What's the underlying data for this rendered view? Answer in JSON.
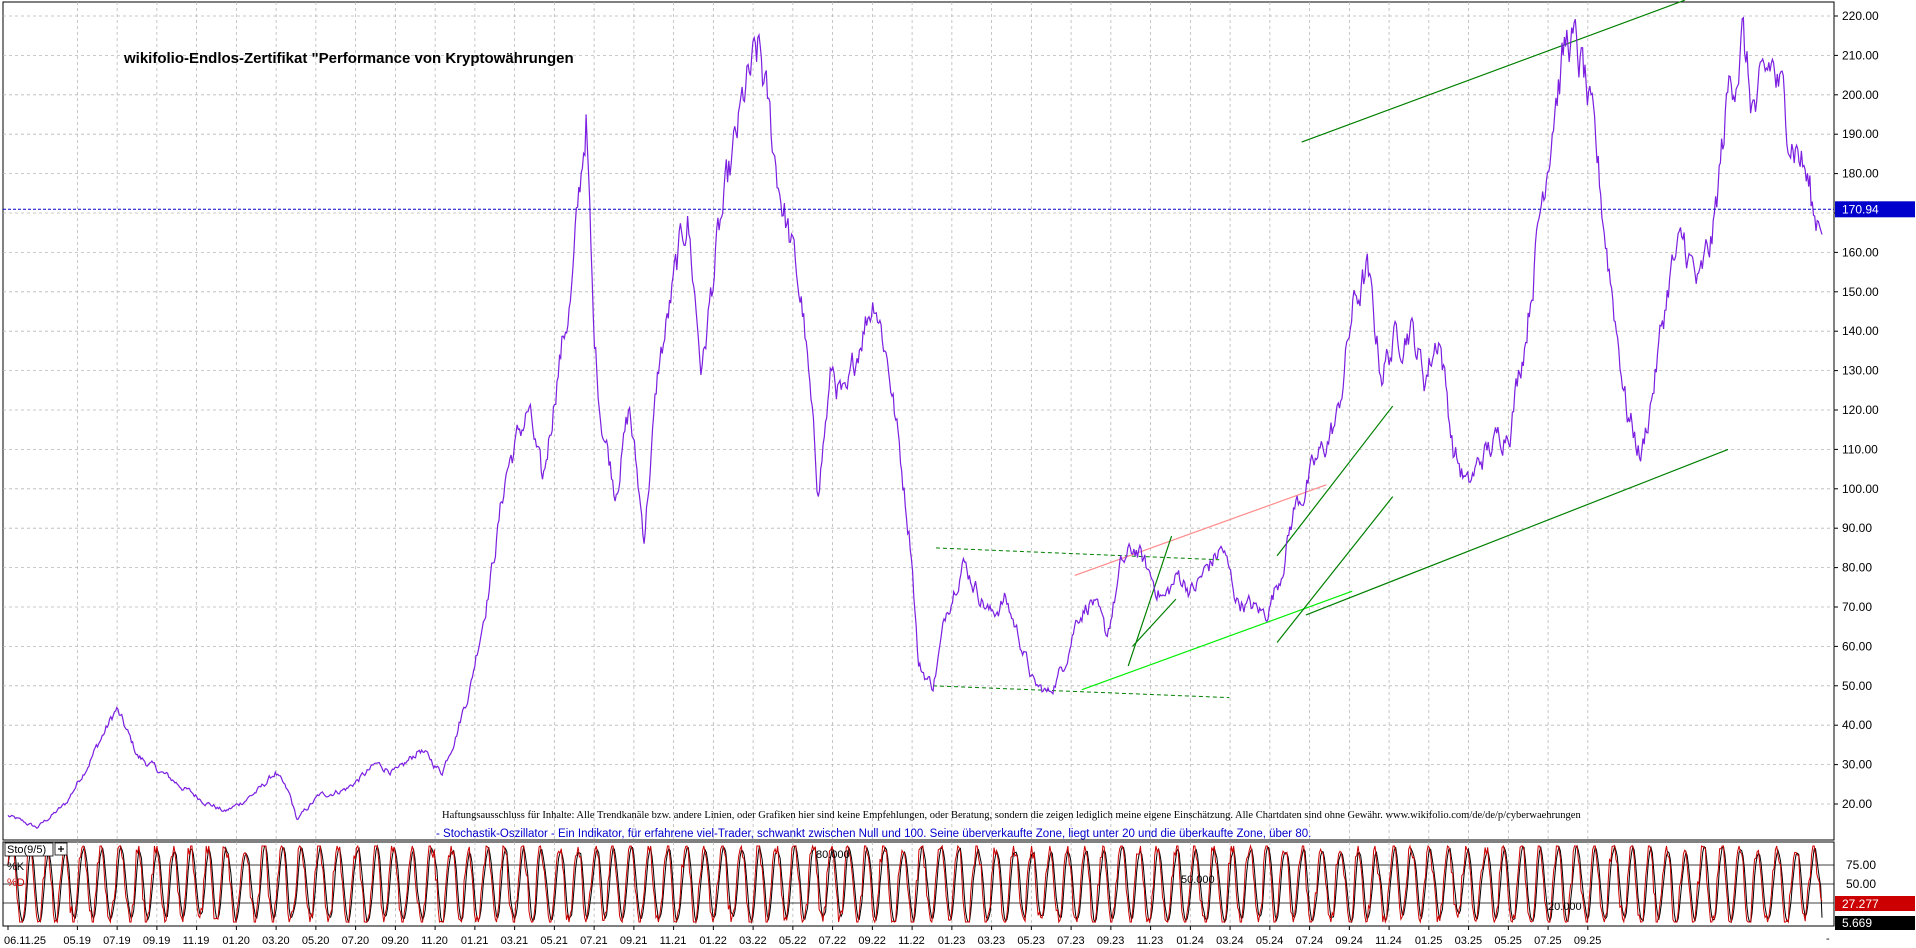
{
  "chart_data": [
    {
      "type": "line",
      "title": "wikifolio-Endlos-Zertifikat \"Performance von Kryptowährungen",
      "y_ticks": [
        "220.00",
        "210.00",
        "200.00",
        "190.00",
        "180.00",
        "170.00",
        "160.00",
        "150.00",
        "140.00",
        "130.00",
        "120.00",
        "110.00",
        "100.00",
        "90.00",
        "80.00",
        "70.00",
        "60.00",
        "50.00",
        "40.00",
        "30.00",
        "20.00"
      ],
      "ylim": [
        12,
        223
      ],
      "last_value_label": "170.94",
      "last_value": 170.94,
      "x_ticks": [
        "06.11.25",
        "05.19",
        "07.19",
        "09.19",
        "11.19",
        "01.20",
        "03.20",
        "05.20",
        "07.20",
        "09.20",
        "11.20",
        "01.21",
        "03.21",
        "05.21",
        "07.21",
        "09.21",
        "11.21",
        "01.22",
        "03.22",
        "05.22",
        "07.22",
        "09.22",
        "11.22",
        "01.23",
        "03.23",
        "05.23",
        "07.23",
        "09.23",
        "11.23",
        "01.24",
        "03.24",
        "05.24",
        "07.24",
        "09.24",
        "11.24",
        "01.25",
        "03.25",
        "05.25",
        "07.25",
        "09.25"
      ],
      "x_tick_pos": [
        0.0,
        0.048,
        0.0755,
        0.103,
        0.1305,
        0.158,
        0.1855,
        0.213,
        0.2405,
        0.268,
        0.2955,
        0.323,
        0.3505,
        0.378,
        0.4055,
        0.433,
        0.4605,
        0.488,
        0.5155,
        0.543,
        0.5705,
        0.598,
        0.6255,
        0.653,
        0.6805,
        0.708,
        0.7355,
        0.763,
        0.7905,
        0.818,
        0.8455,
        0.873,
        0.9005,
        0.928,
        0.9555,
        0.983,
        1.0105,
        1.038,
        1.0655,
        1.093
      ],
      "series": [
        {
          "color": "#7b1fe0",
          "anchors": [
            [
              0.0,
              17
            ],
            [
              0.02,
              14
            ],
            [
              0.04,
              20
            ],
            [
              0.055,
              30
            ],
            [
              0.075,
              44
            ],
            [
              0.09,
              32
            ],
            [
              0.11,
              27
            ],
            [
              0.13,
              22
            ],
            [
              0.15,
              18
            ],
            [
              0.16,
              20
            ],
            [
              0.175,
              24
            ],
            [
              0.185,
              28
            ],
            [
              0.195,
              22
            ],
            [
              0.2,
              16
            ],
            [
              0.215,
              22
            ],
            [
              0.235,
              24
            ],
            [
              0.255,
              30
            ],
            [
              0.27,
              28
            ],
            [
              0.285,
              34
            ],
            [
              0.3,
              28
            ],
            [
              0.31,
              38
            ],
            [
              0.32,
              50
            ],
            [
              0.335,
              80
            ],
            [
              0.345,
              105
            ],
            [
              0.36,
              120
            ],
            [
              0.37,
              100
            ],
            [
              0.38,
              130
            ],
            [
              0.39,
              150
            ],
            [
              0.4,
              195
            ],
            [
              0.405,
              140
            ],
            [
              0.41,
              120
            ],
            [
              0.42,
              100
            ],
            [
              0.43,
              120
            ],
            [
              0.44,
              88
            ],
            [
              0.45,
              130
            ],
            [
              0.46,
              150
            ],
            [
              0.47,
              170
            ],
            [
              0.48,
              130
            ],
            [
              0.49,
              160
            ],
            [
              0.5,
              180
            ],
            [
              0.51,
              200
            ],
            [
              0.52,
              210
            ],
            [
              0.53,
              185
            ],
            [
              0.54,
              165
            ],
            [
              0.55,
              145
            ],
            [
              0.56,
              100
            ],
            [
              0.57,
              130
            ],
            [
              0.58,
              120
            ],
            [
              0.59,
              140
            ],
            [
              0.6,
              150
            ],
            [
              0.61,
              130
            ],
            [
              0.62,
              100
            ],
            [
              0.625,
              85
            ],
            [
              0.63,
              55
            ],
            [
              0.64,
              50
            ],
            [
              0.65,
              70
            ],
            [
              0.66,
              82
            ],
            [
              0.67,
              75
            ],
            [
              0.68,
              68
            ],
            [
              0.69,
              72
            ],
            [
              0.7,
              62
            ],
            [
              0.71,
              50
            ],
            [
              0.72,
              48
            ],
            [
              0.73,
              55
            ],
            [
              0.74,
              68
            ],
            [
              0.75,
              72
            ],
            [
              0.76,
              62
            ],
            [
              0.77,
              80
            ],
            [
              0.78,
              85
            ],
            [
              0.79,
              78
            ],
            [
              0.8,
              72
            ],
            [
              0.81,
              78
            ],
            [
              0.82,
              74
            ],
            [
              0.83,
              80
            ],
            [
              0.84,
              85
            ],
            [
              0.85,
              72
            ],
            [
              0.86,
              70
            ],
            [
              0.87,
              68
            ],
            [
              0.88,
              78
            ],
            [
              0.89,
              95
            ],
            [
              0.9,
              102
            ],
            [
              0.91,
              110
            ],
            [
              0.92,
              118
            ],
            [
              0.93,
              145
            ],
            [
              0.94,
              155
            ],
            [
              0.95,
              130
            ],
            [
              0.96,
              138
            ],
            [
              0.97,
              142
            ],
            [
              0.98,
              128
            ],
            [
              0.99,
              140
            ],
            [
              1.0,
              110
            ],
            [
              1.01,
              100
            ],
            [
              1.02,
              108
            ],
            [
              1.03,
              112
            ],
            [
              1.04,
              118
            ],
            [
              1.05,
              140
            ],
            [
              1.06,
              170
            ],
            [
              1.07,
              200
            ],
            [
              1.08,
              215
            ],
            [
              1.09,
              205
            ],
            [
              1.1,
              180
            ],
            [
              1.11,
              150
            ],
            [
              1.12,
              120
            ],
            [
              1.13,
              108
            ],
            [
              1.14,
              130
            ],
            [
              1.15,
              155
            ],
            [
              1.16,
              162
            ],
            [
              1.17,
              150
            ],
            [
              1.18,
              165
            ],
            [
              1.19,
              200
            ],
            [
              1.2,
              215
            ],
            [
              1.205,
              200
            ],
            [
              1.21,
              195
            ],
            [
              1.22,
              208
            ],
            [
              1.23,
              195
            ],
            [
              1.24,
              185
            ],
            [
              1.245,
              178
            ],
            [
              1.25,
              168
            ],
            [
              1.255,
              171
            ]
          ]
        }
      ],
      "annotations": [
        {
          "kind": "dashed",
          "color": "#008000",
          "from": [
            0.642,
            85
          ],
          "to": [
            0.838,
            82
          ]
        },
        {
          "kind": "dashed",
          "color": "#008000",
          "from": [
            0.64,
            50
          ],
          "to": [
            0.845,
            47
          ]
        },
        {
          "kind": "solid",
          "color": "#ff8a8a",
          "from": [
            0.738,
            78
          ],
          "to": [
            0.912,
            101
          ]
        },
        {
          "kind": "solid",
          "color": "#00ee00",
          "from": [
            0.743,
            49
          ],
          "to": [
            0.93,
            74
          ]
        },
        {
          "kind": "solid",
          "color": "#008000",
          "from": [
            0.775,
            55
          ],
          "to": [
            0.805,
            88
          ]
        },
        {
          "kind": "solid",
          "color": "#008000",
          "from": [
            0.778,
            60
          ],
          "to": [
            0.808,
            72
          ]
        },
        {
          "kind": "solid",
          "color": "#008000",
          "from": [
            0.878,
            83
          ],
          "to": [
            0.958,
            121
          ]
        },
        {
          "kind": "solid",
          "color": "#008000",
          "from": [
            0.878,
            61
          ],
          "to": [
            0.958,
            98
          ]
        },
        {
          "kind": "solid",
          "color": "#008000",
          "from": [
            0.898,
            68
          ],
          "to": [
            1.19,
            110
          ]
        },
        {
          "kind": "solid",
          "color": "#008000",
          "from": [
            0.895,
            188
          ],
          "to": [
            1.16,
            224
          ]
        }
      ]
    },
    {
      "type": "line",
      "indicator_label": "Sto(9/5)",
      "k_label": "%K",
      "d_label": "%D",
      "levels": [
        75,
        50,
        25
      ],
      "level_tick_labels": [
        "75.00",
        "50.00",
        "25.00"
      ],
      "inline_labels": [
        "80.000",
        "50.000",
        "20.000"
      ],
      "k_value_label": "27.277",
      "d_value_label": "5.669",
      "k_value": 27.277,
      "d_value": 5.669,
      "ylim": [
        0,
        100
      ],
      "series": [
        {
          "key": "k",
          "color": "#cc0000"
        },
        {
          "key": "d",
          "color": "#000000"
        }
      ]
    }
  ],
  "disclaimer": "Haftungsausschluss für Inhalte: Alle Trendkanäle bzw. andere Linien, oder Grafiken hier sind keine Empfehlungen, oder Beratung, sondern die zeigen lediglich meine eigene Einschätzung. Alle Chartdaten sind ohne Gewähr.  www.wikifolio.com/de/de/p/cyberwaehrungen",
  "stoch_note": "- Stochastik-Oszillator - Ein Indikator, für erfahrene viel-Trader, schwankt zwischen Null und 100. Seine überverkaufte Zone, liegt unter 20 und die überkaufte Zone, über 80.",
  "price_line_color": "#0000cc",
  "value_box_color": "#0000cc"
}
